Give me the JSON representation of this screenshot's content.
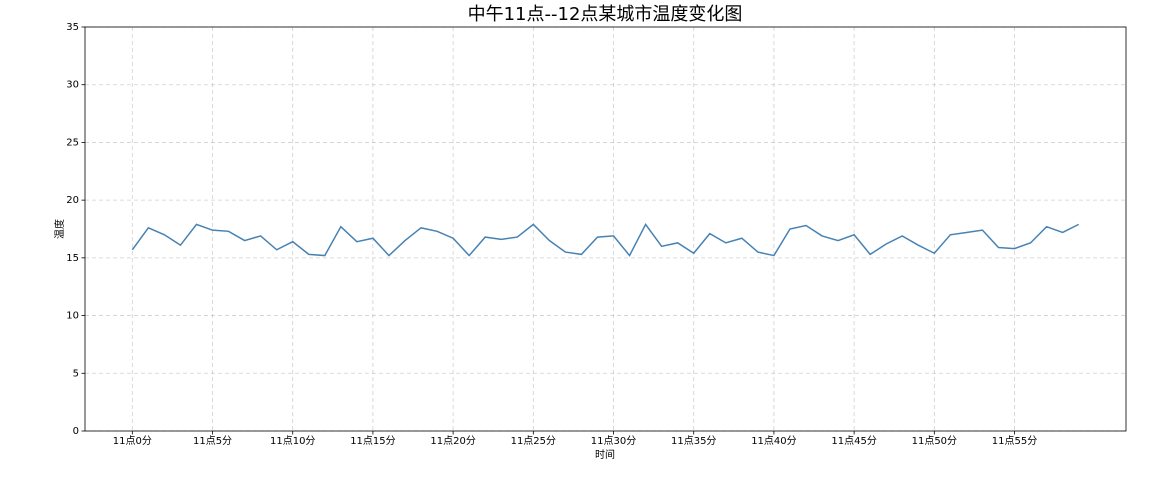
{
  "chart_data": {
    "type": "line",
    "title": "中午11点--12点某城市温度变化图",
    "x_label": "时间",
    "y_label": "温度",
    "x": [
      0,
      1,
      2,
      3,
      4,
      5,
      6,
      7,
      8,
      9,
      10,
      11,
      12,
      13,
      14,
      15,
      16,
      17,
      18,
      19,
      20,
      21,
      22,
      23,
      24,
      25,
      26,
      27,
      28,
      29,
      30,
      31,
      32,
      33,
      34,
      35,
      36,
      37,
      38,
      39,
      40,
      41,
      42,
      43,
      44,
      45,
      46,
      47,
      48,
      49,
      50,
      51,
      52,
      53,
      54,
      55,
      56,
      57,
      58,
      59
    ],
    "series": [
      {
        "name": "温度",
        "color": "#4682b4",
        "values": [
          15.7,
          17.6,
          17.0,
          16.1,
          17.9,
          17.4,
          17.3,
          16.5,
          16.9,
          15.7,
          16.4,
          15.3,
          15.2,
          17.7,
          16.4,
          16.7,
          15.2,
          16.5,
          17.6,
          17.3,
          16.7,
          15.2,
          16.8,
          16.6,
          16.8,
          17.9,
          16.5,
          15.5,
          15.3,
          16.8,
          16.9,
          15.2,
          17.9,
          16.0,
          16.3,
          15.4,
          17.1,
          16.3,
          16.7,
          15.5,
          15.2,
          17.5,
          17.8,
          16.9,
          16.5,
          17.0,
          15.3,
          16.2,
          16.9,
          16.1,
          15.4,
          17.0,
          17.2,
          17.4,
          15.9,
          15.8,
          16.3,
          17.7,
          17.2,
          17.9
        ]
      }
    ],
    "xlim": [
      -2.95,
      61.95
    ],
    "ylim": [
      0,
      35
    ],
    "xticks": [
      {
        "value": 0,
        "label": "11点0分"
      },
      {
        "value": 5,
        "label": "11点5分"
      },
      {
        "value": 10,
        "label": "11点10分"
      },
      {
        "value": 15,
        "label": "11点15分"
      },
      {
        "value": 20,
        "label": "11点20分"
      },
      {
        "value": 25,
        "label": "11点25分"
      },
      {
        "value": 30,
        "label": "11点30分"
      },
      {
        "value": 35,
        "label": "11点35分"
      },
      {
        "value": 40,
        "label": "11点40分"
      },
      {
        "value": 45,
        "label": "11点45分"
      },
      {
        "value": 50,
        "label": "11点50分"
      },
      {
        "value": 55,
        "label": "11点55分"
      }
    ],
    "yticks": [
      0,
      5,
      10,
      15,
      20,
      25,
      30,
      35
    ],
    "grid": true
  }
}
